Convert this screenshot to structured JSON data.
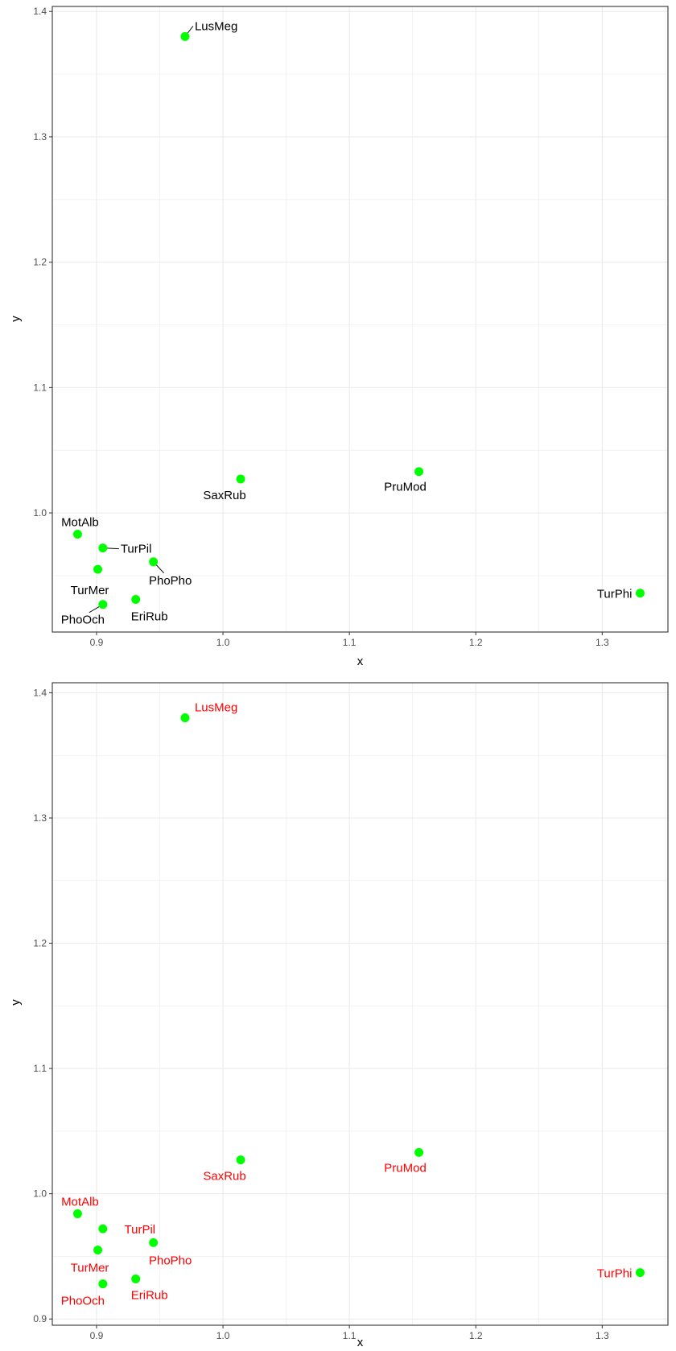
{
  "colors": {
    "point": "#00ff00",
    "grid": "#ebebeb",
    "panel_border": "#333333",
    "tick_text": "#4d4d4d",
    "label_top_panel": "#000000",
    "label_bottom_panel": "#ff0000"
  },
  "chart_data": [
    {
      "type": "scatter",
      "xlabel": "x",
      "ylabel": "y",
      "xlim": [
        0.865,
        1.352
      ],
      "ylim": [
        0.905,
        1.404
      ],
      "xticks": [
        "0.9",
        "1.0",
        "1.1",
        "1.2",
        "1.3"
      ],
      "yticks": [
        "1.0",
        "1.1",
        "1.2",
        "1.3",
        "1.4"
      ],
      "grid": true,
      "label_color": "black",
      "points": [
        {
          "label": "LusMeg",
          "x": 0.97,
          "y": 1.38
        },
        {
          "label": "SaxRub",
          "x": 1.014,
          "y": 1.027
        },
        {
          "label": "PruMod",
          "x": 1.155,
          "y": 1.033
        },
        {
          "label": "MotAlb",
          "x": 0.885,
          "y": 0.983
        },
        {
          "label": "TurPil",
          "x": 0.905,
          "y": 0.972
        },
        {
          "label": "PhoPho",
          "x": 0.945,
          "y": 0.961
        },
        {
          "label": "TurMer",
          "x": 0.901,
          "y": 0.955
        },
        {
          "label": "PhoOch",
          "x": 0.905,
          "y": 0.927
        },
        {
          "label": "EriRub",
          "x": 0.931,
          "y": 0.931
        },
        {
          "label": "TurPhi",
          "x": 1.33,
          "y": 0.936
        }
      ]
    },
    {
      "type": "scatter",
      "xlabel": "x",
      "ylabel": "y",
      "xlim": [
        0.865,
        1.352
      ],
      "ylim": [
        0.895,
        1.408
      ],
      "xticks": [
        "0.9",
        "1.0",
        "1.1",
        "1.2",
        "1.3"
      ],
      "yticks": [
        "0.9",
        "1.0",
        "1.1",
        "1.2",
        "1.3",
        "1.4"
      ],
      "grid": true,
      "label_color": "red",
      "points": [
        {
          "label": "LusMeg",
          "x": 0.97,
          "y": 1.38
        },
        {
          "label": "SaxRub",
          "x": 1.014,
          "y": 1.027
        },
        {
          "label": "PruMod",
          "x": 1.155,
          "y": 1.033
        },
        {
          "label": "MotAlb",
          "x": 0.885,
          "y": 0.984
        },
        {
          "label": "TurPil",
          "x": 0.905,
          "y": 0.972
        },
        {
          "label": "PhoPho",
          "x": 0.945,
          "y": 0.961
        },
        {
          "label": "TurMer",
          "x": 0.901,
          "y": 0.955
        },
        {
          "label": "PhoOch",
          "x": 0.905,
          "y": 0.928
        },
        {
          "label": "EriRub",
          "x": 0.931,
          "y": 0.932
        },
        {
          "label": "TurPhi",
          "x": 1.33,
          "y": 0.937
        }
      ]
    }
  ]
}
